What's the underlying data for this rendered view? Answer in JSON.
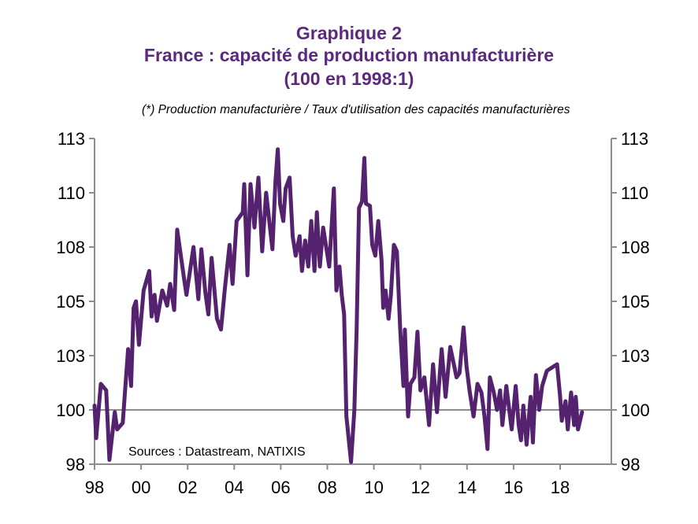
{
  "chart_data": {
    "type": "line",
    "title": "Graphique 2",
    "subtitle": "France : capacité de production manufacturière",
    "subtitle2": "(100 en 1998:1)",
    "annotation": "(*) Production manufacturière  / Taux d'utilisation des capacités manufacturières",
    "source": "Sources : Datastream, NATIXIS",
    "xlabel": "",
    "ylabel": "",
    "xlim": [
      1998,
      2020.2
    ],
    "ylim": [
      97.5,
      112.5
    ],
    "reference_line": 100,
    "x_ticks": [
      {
        "value": 1998,
        "label": "98"
      },
      {
        "value": 2000,
        "label": "00"
      },
      {
        "value": 2002,
        "label": "02"
      },
      {
        "value": 2004,
        "label": "04"
      },
      {
        "value": 2006,
        "label": "06"
      },
      {
        "value": 2008,
        "label": "08"
      },
      {
        "value": 2010,
        "label": "10"
      },
      {
        "value": 2012,
        "label": "12"
      },
      {
        "value": 2014,
        "label": "14"
      },
      {
        "value": 2016,
        "label": "16"
      },
      {
        "value": 2018,
        "label": "18"
      }
    ],
    "y_ticks": [
      {
        "value": 112.5,
        "label": "113"
      },
      {
        "value": 110,
        "label": "110"
      },
      {
        "value": 107.5,
        "label": "108"
      },
      {
        "value": 105,
        "label": "105"
      },
      {
        "value": 102.5,
        "label": "103"
      },
      {
        "value": 100,
        "label": "100"
      },
      {
        "value": 97.5,
        "label": "98"
      }
    ],
    "color": "#55226f",
    "series": [
      {
        "name": "Capacité de production manufacturière",
        "x": [
          1998.0,
          1998.07,
          1998.27,
          1998.5,
          1998.64,
          1998.87,
          1998.97,
          1999.21,
          1999.44,
          1999.57,
          1999.68,
          1999.78,
          1999.91,
          2000.11,
          2000.35,
          2000.45,
          2000.58,
          2000.68,
          2000.91,
          2001.12,
          2001.25,
          2001.42,
          2001.55,
          2001.85,
          2001.95,
          2002.25,
          2002.46,
          2002.59,
          2002.76,
          2002.89,
          2003.03,
          2003.26,
          2003.43,
          2003.59,
          2003.8,
          2003.93,
          2004.1,
          2004.37,
          2004.43,
          2004.57,
          2004.7,
          2004.87,
          2005.04,
          2005.2,
          2005.37,
          2005.64,
          2005.77,
          2005.87,
          2005.97,
          2006.11,
          2006.21,
          2006.38,
          2006.51,
          2006.64,
          2006.81,
          2006.91,
          2007.05,
          2007.18,
          2007.31,
          2007.45,
          2007.55,
          2007.68,
          2007.82,
          2007.98,
          2008.08,
          2008.28,
          2008.39,
          2008.52,
          2008.62,
          2008.72,
          2008.82,
          2009.02,
          2009.16,
          2009.26,
          2009.36,
          2009.49,
          2009.59,
          2009.66,
          2009.83,
          2009.93,
          2010.06,
          2010.19,
          2010.33,
          2010.4,
          2010.5,
          2010.63,
          2010.73,
          2010.86,
          2010.99,
          2011.13,
          2011.27,
          2011.33,
          2011.47,
          2011.57,
          2011.74,
          2011.87,
          2012.0,
          2012.17,
          2012.37,
          2012.54,
          2012.71,
          2012.91,
          2013.08,
          2013.28,
          2013.55,
          2013.68,
          2013.85,
          2013.98,
          2014.11,
          2014.28,
          2014.45,
          2014.62,
          2014.75,
          2014.88,
          2014.98,
          2015.15,
          2015.29,
          2015.42,
          2015.52,
          2015.69,
          2015.92,
          2016.09,
          2016.22,
          2016.32,
          2016.42,
          2016.56,
          2016.73,
          2016.83,
          2016.96,
          2017.1,
          2017.23,
          2017.43,
          2017.87,
          2018.0,
          2018.07,
          2018.23,
          2018.33,
          2018.47,
          2018.6,
          2018.67,
          2018.77,
          2018.94
        ],
        "values": [
          100.2,
          98.7,
          101.2,
          100.9,
          97.7,
          99.9,
          99.1,
          99.4,
          102.8,
          101.1,
          104.7,
          105.0,
          103.0,
          105.5,
          106.4,
          104.3,
          105.3,
          104.1,
          105.5,
          104.8,
          105.8,
          104.6,
          108.3,
          106.0,
          105.3,
          107.5,
          105.1,
          107.4,
          105.4,
          104.4,
          107.0,
          104.2,
          103.7,
          105.5,
          107.6,
          105.8,
          108.7,
          109.1,
          110.4,
          106.2,
          110.4,
          108.4,
          110.7,
          107.3,
          110.0,
          107.4,
          110.5,
          112.0,
          109.5,
          108.7,
          110.2,
          110.7,
          108.0,
          107.1,
          108.0,
          106.4,
          107.8,
          106.6,
          108.7,
          106.4,
          109.1,
          106.6,
          108.4,
          107.3,
          106.6,
          110.2,
          105.5,
          106.6,
          105.3,
          104.4,
          99.7,
          97.6,
          100.0,
          103.7,
          109.3,
          109.6,
          111.6,
          109.5,
          109.4,
          107.6,
          107.1,
          108.7,
          106.9,
          104.7,
          105.5,
          104.2,
          105.3,
          107.6,
          107.3,
          103.7,
          101.1,
          103.7,
          99.7,
          101.2,
          101.5,
          103.6,
          100.9,
          101.5,
          99.3,
          102.1,
          99.9,
          102.8,
          100.6,
          102.9,
          101.5,
          101.7,
          103.8,
          102.0,
          100.9,
          99.7,
          101.2,
          100.8,
          99.7,
          98.2,
          101.5,
          100.8,
          100.0,
          100.9,
          99.3,
          101.1,
          99.1,
          101.1,
          99.3,
          98.6,
          100.2,
          98.4,
          100.6,
          98.5,
          101.6,
          100.0,
          101.1,
          101.8,
          102.1,
          100.6,
          99.5,
          100.4,
          99.1,
          100.8,
          99.3,
          100.6,
          99.1,
          99.9
        ]
      }
    ]
  }
}
